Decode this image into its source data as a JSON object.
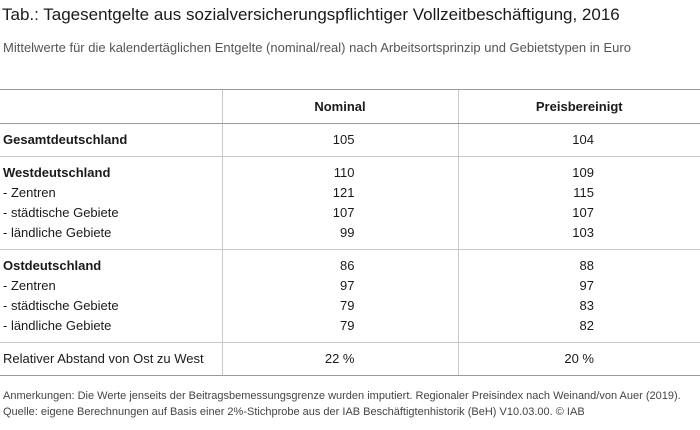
{
  "title": "Tab.: Tagesentgelte aus sozialversicherungspflichtiger Vollzeitbeschäftigung, 2016",
  "subtitle": "Mittelwerte für die kalendertäglichen Entgelte (nominal/real) nach Arbeitsortsprinzip und Gebietstypen in Euro",
  "table": {
    "headers": [
      "",
      "Nominal",
      "Preisbereinigt"
    ],
    "rows": [
      {
        "label": "Gesamtdeutschland",
        "nominal": "105",
        "preisbereinigt": "104"
      },
      {
        "label": "Westdeutschland",
        "nominal": "110",
        "preisbereinigt": "109"
      },
      {
        "label": "- Zentren",
        "nominal": "121",
        "preisbereinigt": "115"
      },
      {
        "label": "- städtische Gebiete",
        "nominal": "107",
        "preisbereinigt": "107"
      },
      {
        "label": "- ländliche Gebiete",
        "nominal": "99",
        "preisbereinigt": "103"
      },
      {
        "label": "Ostdeutschland",
        "nominal": "86",
        "preisbereinigt": "88"
      },
      {
        "label": "- Zentren",
        "nominal": "97",
        "preisbereinigt": "97"
      },
      {
        "label": "- städtische Gebiete",
        "nominal": "79",
        "preisbereinigt": "83"
      },
      {
        "label": "- ländliche Gebiete",
        "nominal": "79",
        "preisbereinigt": "82"
      },
      {
        "label": "Relativer Abstand von Ost zu West",
        "nominal": "22 %",
        "preisbereinigt": "20 %"
      }
    ]
  },
  "notes": {
    "line1": "Anmerkungen: Die Werte jenseits der Beitragsbemessungsgrenze wurden imputiert. Regionaler Preisindex nach Weinand/von Auer (2019).",
    "line2": "Quelle: eigene Berechnungen auf Basis einer 2%-Stichprobe aus der IAB Beschäftigtenhistorik (BeH) V10.03.00. © IAB"
  }
}
